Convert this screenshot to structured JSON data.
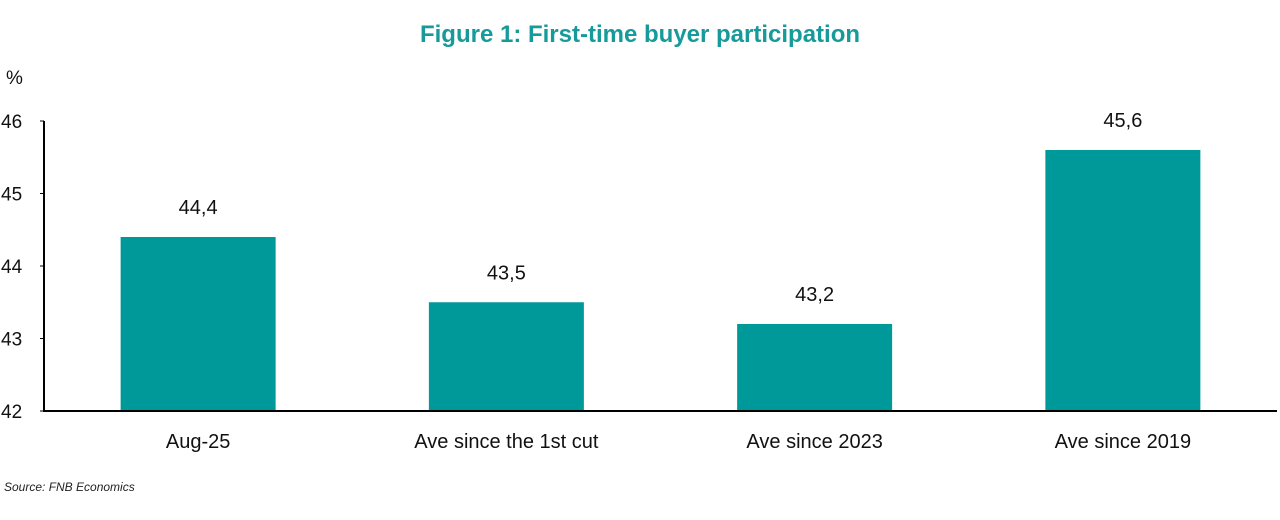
{
  "chart_data": {
    "type": "bar",
    "title": "Figure 1: First-time buyer participation",
    "ylabel": "%",
    "xlabel": "",
    "categories": [
      "Aug-25",
      "Ave since the 1st cut",
      "Ave since 2023",
      "Ave since 2019"
    ],
    "values": [
      44.4,
      43.5,
      43.2,
      45.6
    ],
    "value_labels": [
      "44,4",
      "43,5",
      "43,2",
      "45,6"
    ],
    "ylim": [
      42,
      46
    ],
    "yticks": [
      42,
      43,
      44,
      45,
      46
    ],
    "ytick_labels": [
      "42",
      "43",
      "44",
      "45",
      "46"
    ],
    "grid": false,
    "legend": "none",
    "bar_color": "#00999a",
    "title_color": "#169a9a"
  },
  "source": "Source: FNB Economics"
}
